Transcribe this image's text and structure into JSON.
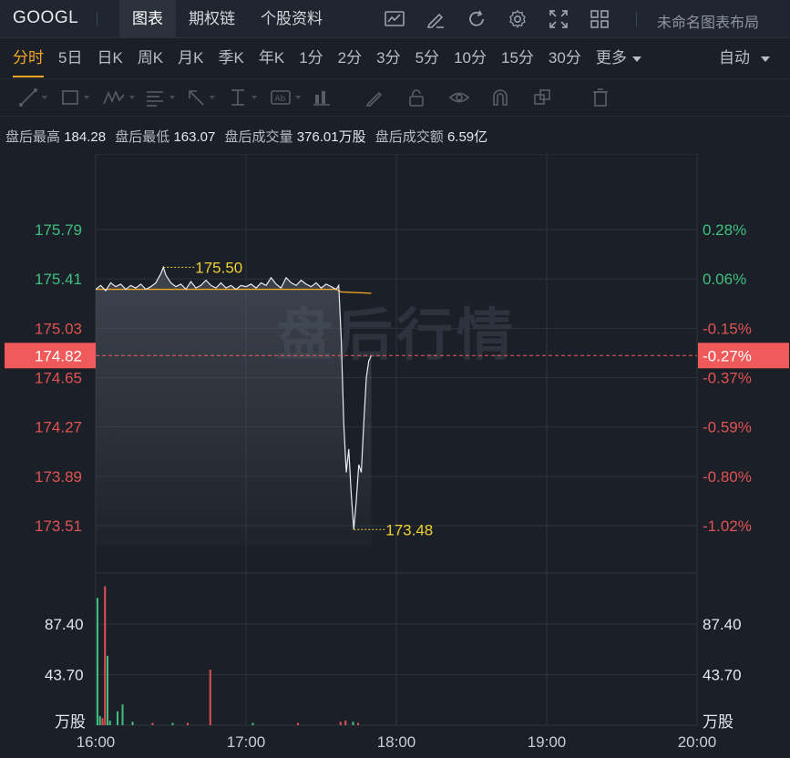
{
  "header": {
    "symbol": "GOOGL",
    "tabs": [
      {
        "label": "图表",
        "active": true
      },
      {
        "label": "期权链",
        "active": false
      },
      {
        "label": "个股资料",
        "active": false
      }
    ],
    "tools": [
      "indicator-icon",
      "draw-pen-icon",
      "refresh-icon",
      "gear-icon",
      "fullscreen-icon",
      "grid-layout-icon"
    ],
    "layout_label": "未命名图表布局"
  },
  "periods": [
    {
      "label": "分时",
      "active": true
    },
    {
      "label": "5日"
    },
    {
      "label": "日K"
    },
    {
      "label": "周K"
    },
    {
      "label": "月K"
    },
    {
      "label": "季K"
    },
    {
      "label": "年K"
    },
    {
      "label": "1分"
    },
    {
      "label": "2分"
    },
    {
      "label": "3分"
    },
    {
      "label": "5分"
    },
    {
      "label": "10分"
    },
    {
      "label": "15分"
    },
    {
      "label": "30分"
    },
    {
      "label": "更多"
    }
  ],
  "auto_label": "自动",
  "drawing_tools": [
    "line-tool-icon",
    "rect-tool-icon",
    "wave-tool-icon",
    "text-list-icon",
    "arrow-tool-icon",
    "measure-tool-icon",
    "label-tool-icon",
    "bar-tool-icon",
    "brush-icon",
    "lock-icon",
    "eye-icon",
    "magnet-icon",
    "layers-icon",
    "trash-icon"
  ],
  "info": {
    "high_label": "盘后最高",
    "high": "184.28",
    "low_label": "盘后最低",
    "low": "163.07",
    "vol_label": "盘后成交量",
    "vol": "376.01万股",
    "amt_label": "盘后成交额",
    "amt": "6.59亿"
  },
  "watermark": "盘后行情",
  "colors": {
    "up": "#e05252",
    "down": "#3fbf7f",
    "avg": "#f5a623",
    "current": "#f05a5a"
  },
  "chart_data": {
    "type": "line",
    "x_ticks": [
      "16:00",
      "17:00",
      "18:00",
      "19:00",
      "20:00"
    ],
    "price_ticks": [
      {
        "price": "175.79",
        "pct": "0.28%"
      },
      {
        "price": "175.41",
        "pct": "0.06%"
      },
      {
        "price": "175.03",
        "pct": "-0.15%"
      },
      {
        "price": "174.65",
        "pct": "-0.37%"
      },
      {
        "price": "174.27",
        "pct": "-0.59%"
      },
      {
        "price": "173.89",
        "pct": "-0.80%"
      },
      {
        "price": "173.51",
        "pct": "-1.02%"
      }
    ],
    "current": {
      "price": "174.82",
      "pct": "-0.27%"
    },
    "max_label": "175.50",
    "min_label": "173.48",
    "price_series": [
      [
        0,
        175.33
      ],
      [
        2,
        175.36
      ],
      [
        4,
        175.32
      ],
      [
        6,
        175.38
      ],
      [
        8,
        175.35
      ],
      [
        10,
        175.37
      ],
      [
        12,
        175.33
      ],
      [
        14,
        175.36
      ],
      [
        16,
        175.34
      ],
      [
        18,
        175.37
      ],
      [
        20,
        175.33
      ],
      [
        22,
        175.35
      ],
      [
        24,
        175.38
      ],
      [
        26,
        175.45
      ],
      [
        27,
        175.5
      ],
      [
        28,
        175.44
      ],
      [
        30,
        175.38
      ],
      [
        32,
        175.35
      ],
      [
        34,
        175.37
      ],
      [
        36,
        175.33
      ],
      [
        38,
        175.39
      ],
      [
        40,
        175.34
      ],
      [
        42,
        175.36
      ],
      [
        44,
        175.4
      ],
      [
        46,
        175.36
      ],
      [
        48,
        175.34
      ],
      [
        50,
        175.38
      ],
      [
        52,
        175.34
      ],
      [
        54,
        175.36
      ],
      [
        56,
        175.33
      ],
      [
        58,
        175.36
      ],
      [
        60,
        175.35
      ],
      [
        62,
        175.37
      ],
      [
        64,
        175.34
      ],
      [
        66,
        175.38
      ],
      [
        68,
        175.36
      ],
      [
        70,
        175.42
      ],
      [
        72,
        175.37
      ],
      [
        74,
        175.34
      ],
      [
        76,
        175.42
      ],
      [
        78,
        175.38
      ],
      [
        80,
        175.36
      ],
      [
        82,
        175.4
      ],
      [
        84,
        175.37
      ],
      [
        86,
        175.35
      ],
      [
        88,
        175.38
      ],
      [
        90,
        175.34
      ],
      [
        92,
        175.37
      ],
      [
        94,
        175.35
      ],
      [
        96,
        175.33
      ],
      [
        97,
        175.36
      ],
      [
        98,
        174.95
      ],
      [
        99,
        174.3
      ],
      [
        100,
        173.92
      ],
      [
        101,
        174.1
      ],
      [
        102,
        173.75
      ],
      [
        103,
        173.48
      ],
      [
        104,
        173.7
      ],
      [
        105,
        173.98
      ],
      [
        106,
        173.92
      ],
      [
        107,
        174.3
      ],
      [
        108,
        174.65
      ],
      [
        109,
        174.78
      ],
      [
        110,
        174.82
      ]
    ],
    "avg_series": [
      [
        0,
        175.33
      ],
      [
        96,
        175.33
      ],
      [
        98,
        175.31
      ],
      [
        110,
        175.3
      ]
    ],
    "volume_ticks": [
      "87.40",
      "43.70"
    ],
    "volume_unit": "万股",
    "volume_max": 131.1,
    "volumes": [
      {
        "m": 0,
        "v": 110,
        "c": "down"
      },
      {
        "m": 1,
        "v": 8,
        "c": "down"
      },
      {
        "m": 2,
        "v": 6,
        "c": "up"
      },
      {
        "m": 3,
        "v": 120,
        "c": "up"
      },
      {
        "m": 4,
        "v": 60,
        "c": "down"
      },
      {
        "m": 5,
        "v": 4,
        "c": "down"
      },
      {
        "m": 8,
        "v": 12,
        "c": "down"
      },
      {
        "m": 10,
        "v": 18,
        "c": "down"
      },
      {
        "m": 14,
        "v": 3,
        "c": "down"
      },
      {
        "m": 22,
        "v": 2,
        "c": "up"
      },
      {
        "m": 30,
        "v": 2,
        "c": "down"
      },
      {
        "m": 36,
        "v": 2,
        "c": "up"
      },
      {
        "m": 45,
        "v": 48,
        "c": "up"
      },
      {
        "m": 62,
        "v": 2,
        "c": "down"
      },
      {
        "m": 80,
        "v": 2,
        "c": "up"
      },
      {
        "m": 97,
        "v": 3,
        "c": "up"
      },
      {
        "m": 99,
        "v": 4,
        "c": "up"
      },
      {
        "m": 102,
        "v": 3,
        "c": "down"
      },
      {
        "m": 104,
        "v": 2,
        "c": "up"
      }
    ]
  }
}
